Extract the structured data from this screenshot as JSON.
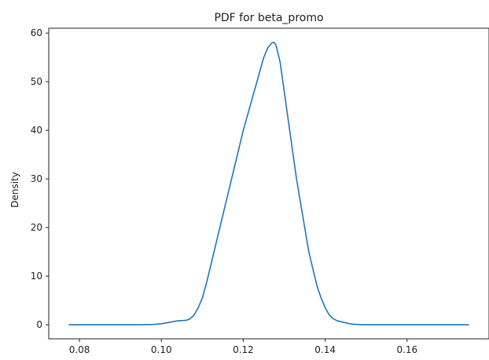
{
  "chart_data": {
    "type": "line",
    "title": "PDF for beta_promo",
    "xlabel": "",
    "ylabel": "Density",
    "xlim": [
      0.0725,
      0.18
    ],
    "ylim": [
      -2.9,
      61
    ],
    "xticks": [
      "0.08",
      "0.10",
      "0.12",
      "0.14",
      "0.16"
    ],
    "yticks": [
      "0",
      "10",
      "20",
      "30",
      "40",
      "50",
      "60"
    ],
    "grid": false,
    "legend": "none",
    "line_color": "#1f77b4",
    "series": [
      {
        "x": [
          0.0775,
          0.085,
          0.09,
          0.095,
          0.098,
          0.1,
          0.102,
          0.104,
          0.106,
          0.107,
          0.108,
          0.109,
          0.11,
          0.111,
          0.112,
          0.113,
          0.114,
          0.115,
          0.116,
          0.117,
          0.118,
          0.119,
          0.12,
          0.121,
          0.122,
          0.123,
          0.124,
          0.125,
          0.126,
          0.127,
          0.1275,
          0.128,
          0.129,
          0.13,
          0.131,
          0.132,
          0.133,
          0.134,
          0.135,
          0.136,
          0.137,
          0.138,
          0.139,
          0.14,
          0.141,
          0.142,
          0.143,
          0.144,
          0.145,
          0.146,
          0.147,
          0.148,
          0.149,
          0.15,
          0.152,
          0.155,
          0.16,
          0.165,
          0.17,
          0.175
        ],
        "y": [
          0,
          0,
          0,
          0,
          0.05,
          0.2,
          0.5,
          0.8,
          0.9,
          1.2,
          2,
          3.5,
          5.5,
          8.5,
          12,
          15.5,
          19,
          22.5,
          26,
          29.5,
          33,
          36.5,
          40,
          43,
          46,
          49,
          52,
          55,
          57,
          58,
          58.1,
          57.5,
          54,
          48,
          42,
          36,
          30,
          25,
          20,
          15,
          11.5,
          8,
          5.5,
          3.5,
          2,
          1.2,
          0.8,
          0.6,
          0.4,
          0.2,
          0.1,
          0.05,
          0,
          0,
          0,
          0,
          0,
          0,
          0,
          0
        ]
      }
    ]
  }
}
